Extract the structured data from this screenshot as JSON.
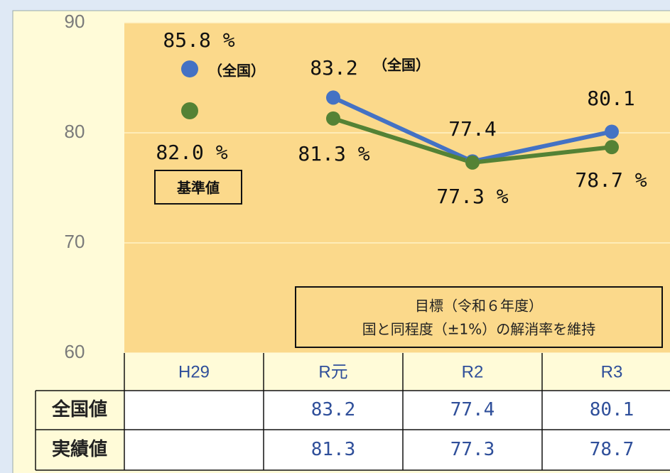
{
  "chart_data": {
    "type": "line",
    "categories": [
      "H29",
      "R元",
      "R2",
      "R3"
    ],
    "series": [
      {
        "name": "全国値",
        "color": "#4472c4",
        "values": [
          85.8,
          83.2,
          77.4,
          80.1
        ],
        "value_labels": [
          "85.8 %",
          "83.2",
          "77.4",
          "80.1"
        ]
      },
      {
        "name": "実績値",
        "color": "#548235",
        "values": [
          82.0,
          81.3,
          77.3,
          78.7
        ],
        "value_labels": [
          "82.0 %",
          "81.3 %",
          "77.3 %",
          "78.7 %"
        ]
      }
    ],
    "ylim": [
      60,
      90
    ],
    "yticks": [
      60,
      70,
      80,
      90
    ],
    "grid": true,
    "annotations": [
      "（全国）",
      "（全国）",
      "基準値"
    ],
    "goal": [
      "目標（令和６年度）",
      "国と同程度（±1%）の解消率を維持"
    ]
  }
}
